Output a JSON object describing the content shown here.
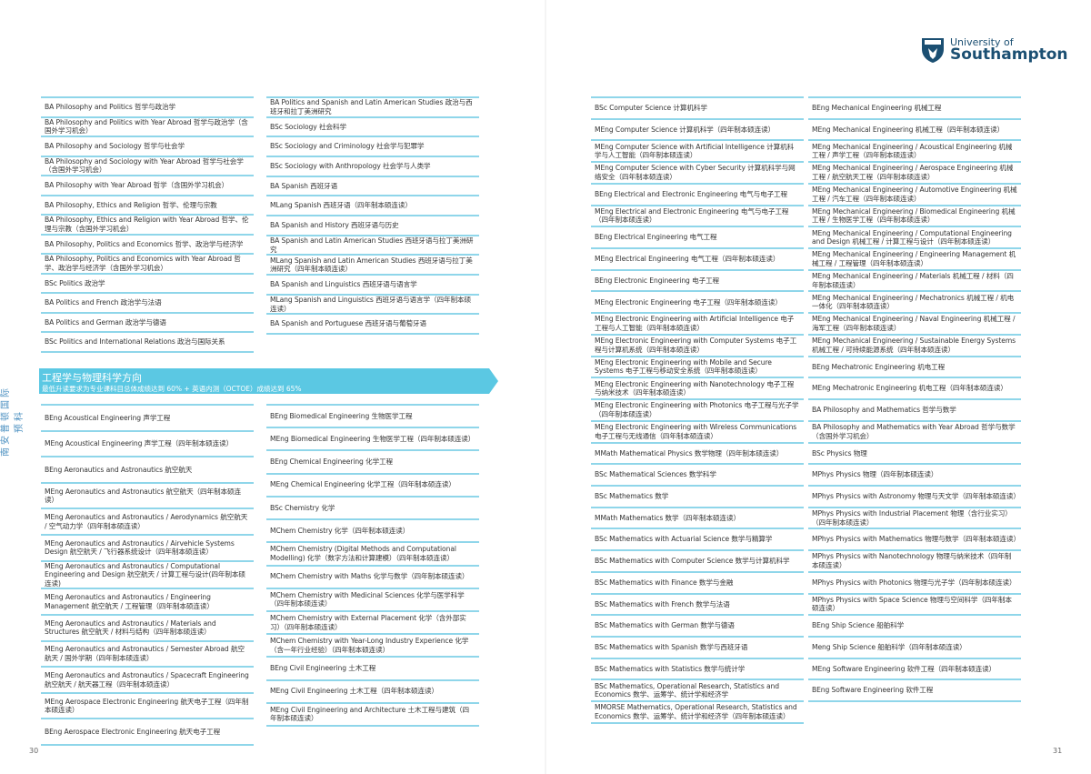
{
  "side_label": "南安普顿国际预科",
  "logo": {
    "line1": "University of",
    "line2": "Southampton"
  },
  "colors": {
    "accent": "#5bc8e3",
    "rule": "#8fd6ea",
    "brand": "#1b4f72"
  },
  "page_numbers": {
    "left": "30",
    "right": "31"
  },
  "banner": {
    "title": "工程学与物理科学方向",
    "subtitle": "最低升读要求为专业课科目总体成绩达到 60% + 英语内测（OCTOE）成绩达到 65%"
  },
  "columns": {
    "c1": [
      "BA Philosophy and Politics 哲学与政治学",
      "BA Philosophy and Politics with Year Abroad 哲学与政治学（含国外学习机会）",
      "BA Philosophy and Sociology 哲学与社会学",
      "BA Philosophy and Sociology with Year Abroad 哲学与社会学（含国外学习机会）",
      "BA Philosophy with Year Abroad 哲学（含国外学习机会）",
      "BA Philosophy, Ethics and Religion 哲学、伦理与宗教",
      "BA Philosophy, Ethics and Religion with Year Abroad 哲学、伦理与宗教（含国外学习机会）",
      "BA Philosophy, Politics and Economics 哲学、政治学与经济学",
      "BA Philosophy, Politics and Economics with Year Abroad 哲学、政治学与经济学（含国外学习机会）",
      "BSc Politics 政治学",
      "BA Politics and French 政治学与法语",
      "BA Politics and German 政治学与德语",
      "BSc Politics and International Relations 政治与国际关系"
    ],
    "c2": [
      "BA Politics and Spanish and Latin American Studies 政治与西班牙和拉丁美洲研究",
      "BSc Sociology 社会科学",
      "BSc Sociology and Criminology 社会学与犯罪学",
      "BSc Sociology with Anthropology 社会学与人类学",
      "BA Spanish 西班牙语",
      "MLang Spanish 西班牙语（四年制本硕连读）",
      "BA Spanish and History 西班牙语与历史",
      "BA Spanish and Latin American Studies 西班牙语与拉丁美洲研究",
      "MLang Spanish and Latin American Studies 西班牙语与拉丁美洲研究（四年制本硕连读）",
      "BA Spanish and Linguistics 西班牙语与语言学",
      "MLang Spanish and Linguistics 西班牙语与语言学（四年制本硕连读）",
      "BA Spanish and Portuguese 西班牙语与葡萄牙语"
    ],
    "c3": [
      "BEng Acoustical Engineering 声学工程",
      "MEng Acoustical Engineering 声学工程（四年制本硕连读）",
      "BEng Aeronautics and Astronautics 航空航天",
      "MEng Aeronautics and Astronautics 航空航天（四年制本硕连读）",
      "MEng Aeronautics and Astronautics / Aerodynamics 航空航天 / 空气动力学（四年制本硕连读）",
      "MEng Aeronautics and Astronautics / Airvehicle Systems Design 航空航天 / 飞行器系统设计（四年制本硕连读）",
      "MEng Aeronautics and Astronautics / Computational Engineering and Design 航空航天 / 计算工程与设计(四年制本硕连读)",
      "MEng Aeronautics and Astronautics / Engineering Management 航空航天 / 工程管理（四年制本硕连读）",
      "MEng Aeronautics and Astronautics / Materials and Structures 航空航天 / 材料与结构（四年制本硕连读）",
      "MEng Aeronautics and Astronautics / Semester Abroad 航空航天 / 国外学期（四年制本硕连读）",
      "MEng Aeronautics and Astronautics / Spacecraft Engineering 航空航天 / 航天器工程（四年制本硕连读）",
      "MEng Aerospace Electronic Engineering 航天电子工程（四年制本硕连读）",
      "BEng Aerospace Electronic Engineering 航天电子工程"
    ],
    "c4": [
      "BEng Biomedical Engineering 生物医学工程",
      "MEng Biomedical Engineering 生物医学工程（四年制本硕连读）",
      "BEng Chemical Engineering 化学工程",
      "MEng Chemical Engineering 化学工程（四年制本硕连读）",
      "BSc Chemistry 化学",
      "MChem Chemistry 化学（四年制本硕连读）",
      "MChem Chemistry (Digital Methods and Computational Modelling) 化学（数字方法和计算建模）（四年制本硕连读）",
      "MChem Chemistry with Maths 化学与数学（四年制本硕连读）",
      "MChem Chemistry with Medicinal Sciences 化学与医学科学（四年制本硕连读）",
      "MChem Chemistry with External Placement 化学（含外部实习）（四年制本硕连读）",
      "MChem Chemistry with Year-Long Industry Experience 化学（含一年行业经验）（四年制本硕连读）",
      "BEng Civil Engineering 土木工程",
      "MEng Civil Engineering 土木工程（四年制本硕连读）",
      "MEng Civil Engineering and Architecture 土木工程与建筑（四年制本硕连读）"
    ],
    "c5": [
      "BSc Computer Science 计算机科学",
      "MEng Computer Science 计算机科学（四年制本硕连读）",
      "MEng Computer Science with Artificial Intelligence 计算机科学与人工智能（四年制本硕连读）",
      "MEng Computer Science with Cyber Security 计算机科学与网络安全（四年制本硕连读）",
      "BEng Electrical and Electronic Engineering 电气与电子工程",
      "MEng Electrical and Electronic Engineering 电气与电子工程（四年制本硕连读）",
      "BEng Electrical Engineering 电气工程",
      "MEng Electrical Engineering 电气工程（四年制本硕连读）",
      "BEng Electronic Engineering 电子工程",
      "MEng Electronic Engineering 电子工程（四年制本硕连读）",
      "MEng Electronic Engineering with Artificial Intelligence 电子工程与人工智能（四年制本硕连读）",
      "MEng Electronic Engineering with Computer Systems 电子工程与计算机系统（四年制本硕连读）",
      "MEng Electronic Engineering with Mobile and Secure Systems 电子工程与移动安全系统（四年制本硕连读）",
      "MEng Electronic Engineering with Nanotechnology 电子工程与纳米技术（四年制本硕连读）",
      "MEng Electronic Engineering with Photonics 电子工程与光子学（四年制本硕连读）",
      "MEng Electronic Engineering with Wireless Communications 电子工程与无线通信（四年制本硕连读）",
      "MMath Mathematical Physics 数学物理（四年制本硕连读）",
      "BSc Mathematical Sciences 数学科学",
      "BSc Mathematics 数学",
      "MMath Mathematics 数学（四年制本硕连读）",
      "BSc Mathematics with Actuarial Science 数学与精算学",
      "BSc Mathematics with Computer Science 数学与计算机科学",
      "BSc Mathematics with Finance 数学与金融",
      "BSc Mathematics with French 数学与法语",
      "BSc Mathematics with German 数学与德语",
      "BSc Mathematics with Spanish 数学与西班牙语",
      "BSc Mathematics with Statistics 数学与统计学",
      "BSc Mathematics, Operational Research, Statistics and Economics 数学、运筹学、统计学和经济学",
      "MMORSE Mathematics, Operational Research, Statistics and Economics 数学、运筹学、统计学和经济学（四年制本硕连读）"
    ],
    "c6": [
      "BEng Mechanical Engineering 机械工程",
      "MEng Mechanical Engineering 机械工程（四年制本硕连读）",
      "MEng Mechanical Engineering / Acoustical Engineering 机械工程 / 声学工程（四年制本硕连读）",
      "MEng Mechanical Engineering / Aerospace Engineering 机械工程 / 航空航天工程（四年制本硕连读）",
      "MEng Mechanical Engineering / Automotive Engineering 机械工程 / 汽车工程（四年制本硕连读）",
      "MEng Mechanical Engineering / Biomedical Engineering 机械工程 / 生物医学工程（四年制本硕连读）",
      "MEng Mechanical Engineering / Computational Engineering and Design 机械工程 / 计算工程与设计（四年制本硕连读）",
      "MEng Mechanical Engineering / Engineering Management 机械工程 / 工程管理（四年制本硕连读）",
      "MEng Mechanical Engineering / Materials 机械工程 / 材料（四年制本硕连读）",
      "MEng Mechanical Engineering / Mechatronics 机械工程 / 机电一体化（四年制本硕连读）",
      "MEng Mechanical Engineering / Naval Engineering 机械工程 / 海军工程（四年制本硕连读）",
      "MEng Mechanical Engineering / Sustainable Energy Systems 机械工程 / 可持续能源系统（四年制本硕连读）",
      "BEng Mechatronic Engineering 机电工程",
      "MEng Mechatronic Engineering 机电工程（四年制本硕连读）",
      "BA Philosophy and Mathematics 哲学与数学",
      "BA Philosophy and Mathematics with Year Abroad 哲学与数学（含国外学习机会）",
      "BSc Physics 物理",
      "MPhys Physics 物理（四年制本硕连读）",
      "MPhys Physics with Astronomy 物理与天文学（四年制本硕连读）",
      "MPhys Physics with Industrial Placement 物理（含行业实习）（四年制本硕连读）",
      "MPhys Physics with Mathematics 物理与数学（四年制本硕连读）",
      "MPhys Physics with Nanotechnology 物理与纳米技术（四年制本硕连读）",
      "MPhys Physics with Photonics 物理与光子学（四年制本硕连读）",
      "MPhys Physics with Space Science 物理与空间科学（四年制本硕连读）",
      "BEng Ship Science 船舶科学",
      "Meng Ship Science 船舶科学（四年制本硕连读）",
      "MEng Software Engineering 软件工程（四年制本硕连读）",
      "BEng Software Engineering 软件工程"
    ]
  }
}
